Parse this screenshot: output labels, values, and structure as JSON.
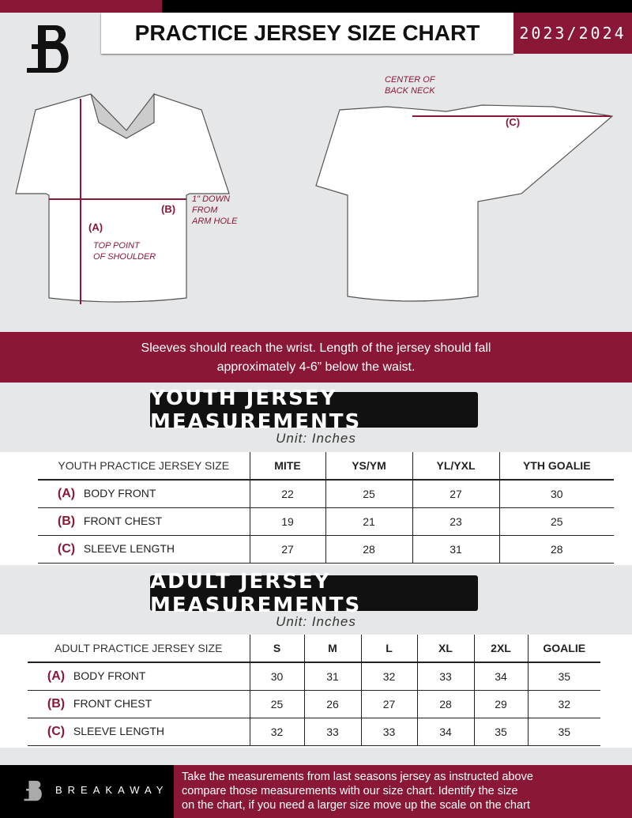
{
  "header": {
    "title": "PRACTICE JERSEY SIZE CHART",
    "season": "2023/2024"
  },
  "diagram": {
    "label_a": "(A)",
    "label_a_note": [
      "TOP POINT",
      "OF SHOULDER"
    ],
    "label_b": "(B)",
    "label_b_note": [
      "1\" DOWN",
      "FROM",
      "ARM HOLE"
    ],
    "label_c": "(C)",
    "label_c_note": [
      "CENTER OF",
      "BACK NECK"
    ]
  },
  "band": {
    "line1": "Sleeves should reach the wrist. Length of the jersey should fall",
    "line2": "approximately 4-6” below the waist."
  },
  "youth": {
    "title": "YOUTH JERSEY MEASUREMENTS",
    "unit": "Unit: Inches",
    "header": "YOUTH PRACTICE JERSEY SIZE",
    "sizes": [
      "MITE",
      "YS/YM",
      "YL/YXL",
      "YTH GOALIE"
    ],
    "rows": [
      {
        "code": "(A)",
        "name": "BODY FRONT",
        "values": [
          "22",
          "25",
          "27",
          "30"
        ]
      },
      {
        "code": "(B)",
        "name": "FRONT CHEST",
        "values": [
          "19",
          "21",
          "23",
          "25"
        ]
      },
      {
        "code": "(C)",
        "name": "SLEEVE LENGTH",
        "values": [
          "27",
          "28",
          "31",
          "28"
        ]
      }
    ]
  },
  "adult": {
    "title": "ADULT JERSEY MEASUREMENTS",
    "unit": "Unit: Inches",
    "header": "ADULT PRACTICE JERSEY SIZE",
    "sizes": [
      "S",
      "M",
      "L",
      "XL",
      "2XL",
      "GOALIE"
    ],
    "rows": [
      {
        "code": "(A)",
        "name": "BODY FRONT",
        "values": [
          "30",
          "31",
          "32",
          "33",
          "34",
          "35"
        ]
      },
      {
        "code": "(B)",
        "name": "FRONT CHEST",
        "values": [
          "25",
          "26",
          "27",
          "28",
          "29",
          "32"
        ]
      },
      {
        "code": "(C)",
        "name": "SLEEVE LENGTH",
        "values": [
          "32",
          "33",
          "33",
          "34",
          "35",
          "35"
        ]
      }
    ]
  },
  "footer": {
    "brand": "BREAKAWAY",
    "note": [
      "Take the measurements from last seasons jersey as instructed above",
      "compare those measurements  with our size chart. Identify the size",
      "on the chart, if you need a larger size move up the scale on the chart"
    ]
  },
  "colors": {
    "accent": "#8a1736",
    "background": "#e6e7e8"
  }
}
